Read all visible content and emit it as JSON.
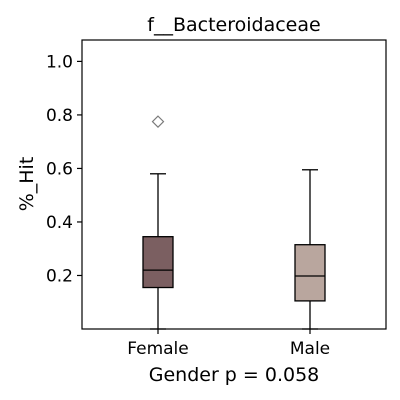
{
  "chart_data": {
    "type": "box",
    "title": "f__Bacteroidaceae",
    "ylabel": "%_Hit",
    "xlabel": "Gender p = 0.058",
    "ylim": [
      0.0,
      1.08
    ],
    "yticks": [
      0.2,
      0.4,
      0.6,
      0.8,
      1.0
    ],
    "ytick_labels": [
      "0.2",
      "0.4",
      "0.6",
      "0.8",
      "1.0"
    ],
    "grid": false,
    "categories": [
      "Female",
      "Male"
    ],
    "boxes": [
      {
        "name": "Female",
        "whisker_low": 0.0,
        "q1": 0.155,
        "median": 0.22,
        "q3": 0.345,
        "whisker_high": 0.58,
        "outliers": [
          0.775
        ],
        "color": "#7b5f61"
      },
      {
        "name": "Male",
        "whisker_low": 0.0,
        "q1": 0.105,
        "median": 0.198,
        "q3": 0.315,
        "whisker_high": 0.595,
        "outliers": [],
        "color": "#b9a69e"
      }
    ]
  }
}
